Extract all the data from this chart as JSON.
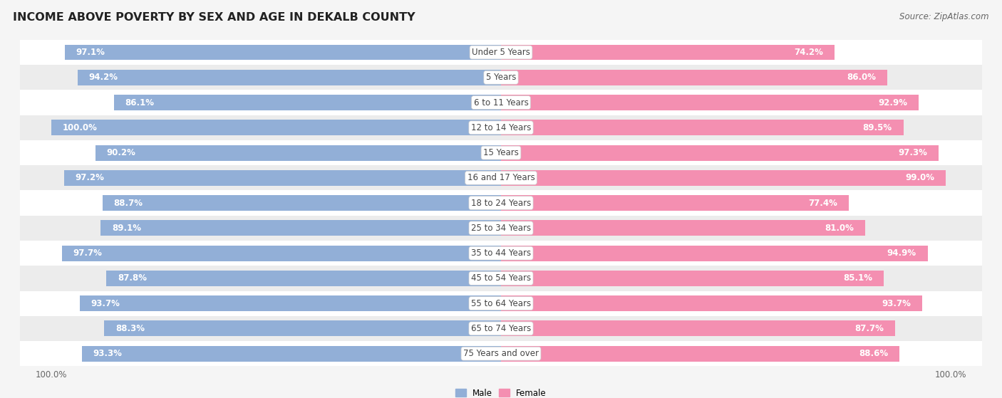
{
  "title": "INCOME ABOVE POVERTY BY SEX AND AGE IN DEKALB COUNTY",
  "source": "Source: ZipAtlas.com",
  "categories": [
    "Under 5 Years",
    "5 Years",
    "6 to 11 Years",
    "12 to 14 Years",
    "15 Years",
    "16 and 17 Years",
    "18 to 24 Years",
    "25 to 34 Years",
    "35 to 44 Years",
    "45 to 54 Years",
    "55 to 64 Years",
    "65 to 74 Years",
    "75 Years and over"
  ],
  "male_values": [
    97.1,
    94.2,
    86.1,
    100.0,
    90.2,
    97.2,
    88.7,
    89.1,
    97.7,
    87.8,
    93.7,
    88.3,
    93.3
  ],
  "female_values": [
    74.2,
    86.0,
    92.9,
    89.5,
    97.3,
    99.0,
    77.4,
    81.0,
    94.9,
    85.1,
    93.7,
    87.7,
    88.6
  ],
  "male_color": "#92afd7",
  "female_color": "#f48fb1",
  "male_label": "Male",
  "female_label": "Female",
  "bar_height": 0.62,
  "background_color": "#f5f5f5",
  "row_light_color": "#ffffff",
  "row_dark_color": "#ececec",
  "title_fontsize": 11.5,
  "label_fontsize": 8.5,
  "value_fontsize": 8.5,
  "tick_fontsize": 8.5,
  "source_fontsize": 8.5,
  "max_val": 100.0
}
